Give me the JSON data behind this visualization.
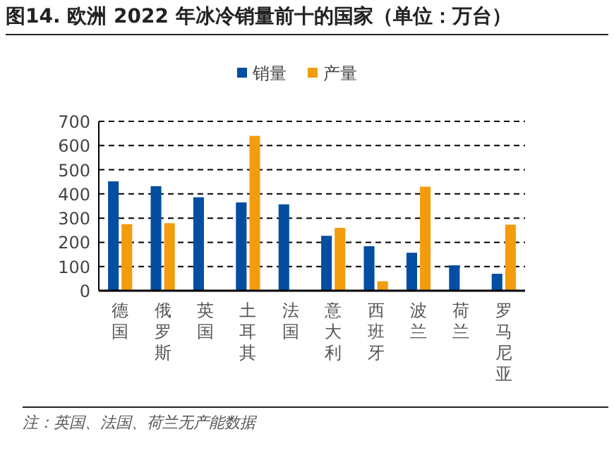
{
  "chart_data": {
    "type": "bar",
    "title": "图14. 欧洲 2022 年冰冷销量前十的国家（单位：万台）",
    "categories": [
      "德国",
      "俄罗斯",
      "英国",
      "土耳其",
      "法国",
      "意大利",
      "西班牙",
      "波兰",
      "荷兰",
      "罗马尼亚"
    ],
    "series": [
      {
        "name": "销量",
        "color": "#034ea2",
        "values": [
          452,
          432,
          386,
          365,
          357,
          227,
          184,
          157,
          105,
          70
        ]
      },
      {
        "name": "产量",
        "color": "#f39c0e",
        "values": [
          275,
          279,
          null,
          640,
          null,
          260,
          39,
          430,
          null,
          273
        ]
      }
    ],
    "ylim": [
      0,
      700
    ],
    "yticks": [
      0,
      100,
      200,
      300,
      400,
      500,
      600,
      700
    ],
    "grid": "y",
    "legend": "top",
    "annotations": [
      "注：英国、法国、荷兰无产能数据"
    ]
  }
}
